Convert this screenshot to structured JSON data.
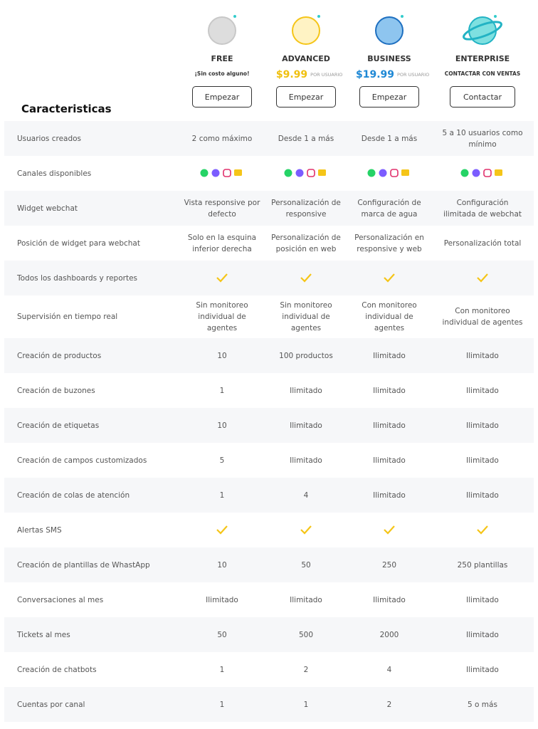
{
  "header": {
    "title": "Caracteristicas"
  },
  "plans": [
    {
      "name": "FREE",
      "note": "¡Sin costo alguno!",
      "button": "Empezar"
    },
    {
      "name": "ADVANCED",
      "price": "$9.99",
      "price_unit": "POR USUARIO",
      "button": "Empezar"
    },
    {
      "name": "BUSINESS",
      "price": "$19.99",
      "price_unit": "POR USUARIO",
      "button": "Empezar"
    },
    {
      "name": "ENTERPRISE",
      "note": "CONTACTAR CON VENTAS",
      "button": "Contactar"
    }
  ],
  "rows": [
    {
      "label": "Usuarios creados",
      "cells": [
        "2 como máximo",
        "Desde 1 a más",
        "Desde 1 a más",
        "5 a 10 usuarios como mínimo"
      ]
    },
    {
      "label": "Canales disponibles",
      "cells": [
        null,
        null,
        null,
        null
      ]
    },
    {
      "label": "Widget webchat",
      "cells": [
        "Vista responsive por defecto",
        "Personalización de responsive",
        "Configuración de marca de agua",
        "Configuración ilimitada de webchat"
      ]
    },
    {
      "label": "Posición de widget para webchat",
      "cells": [
        "Solo en la esquina inferior derecha",
        "Personalización de posición en web",
        "Personalización en responsive y web",
        "Personalización total"
      ]
    },
    {
      "label": "Todos los dashboards y reportes",
      "cells": [
        true,
        true,
        true,
        true
      ]
    },
    {
      "label": "Supervisión en tiempo real",
      "cells": [
        "Sin monitoreo individual de agentes",
        "Sin monitoreo individual de agentes",
        "Con monitoreo individual de agentes",
        "Con monitoreo individual de agentes"
      ]
    },
    {
      "label": "Creación de productos",
      "cells": [
        10,
        "100 productos",
        "Ilimitado",
        "Ilimitado"
      ]
    },
    {
      "label": "Creación de buzones",
      "cells": [
        1,
        "Ilimitado",
        "Ilimitado",
        "Ilimitado"
      ]
    },
    {
      "label": "Creación de etiquetas",
      "cells": [
        10,
        "Ilimitado",
        "Ilimitado",
        "Ilimitado"
      ]
    },
    {
      "label": "Creación de campos customizados",
      "cells": [
        5,
        "Ilimitado",
        "Ilimitado",
        "Ilimitado"
      ]
    },
    {
      "label": "Creación de colas de atención",
      "cells": [
        1,
        4,
        "Ilimitado",
        "Ilimitado"
      ]
    },
    {
      "label": "Alertas SMS",
      "cells": [
        true,
        true,
        true,
        true
      ]
    },
    {
      "label": "Creación de plantillas de WhastApp",
      "cells": [
        10,
        50,
        250,
        "250 plantillas"
      ]
    },
    {
      "label": "Conversaciones al mes",
      "cells": [
        "Ilimitado",
        "Ilimitado",
        "Ilimitado",
        "Ilimitado"
      ]
    },
    {
      "label": "Tickets al mes",
      "cells": [
        50,
        500,
        2000,
        "Ilimitado"
      ]
    },
    {
      "label": "Creación de chatbots",
      "cells": [
        1,
        2,
        4,
        "Ilimitado"
      ]
    },
    {
      "label": "Cuentas por canal",
      "cells": [
        1,
        1,
        2,
        "5 o más"
      ]
    }
  ]
}
